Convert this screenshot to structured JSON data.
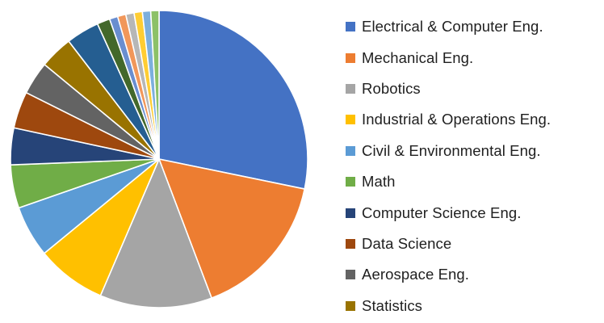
{
  "chart_data": {
    "type": "pie",
    "title": "",
    "legend_position": "right",
    "start_angle_deg": 0,
    "direction": "clockwise",
    "slices": [
      {
        "label": "Electrical & Computer Eng.",
        "value": 28.2,
        "color": "#4472C4"
      },
      {
        "label": "Mechanical Eng.",
        "value": 16.0,
        "color": "#ED7D31"
      },
      {
        "label": "Robotics",
        "value": 12.2,
        "color": "#A5A5A5"
      },
      {
        "label": "Industrial & Operations Eng.",
        "value": 7.6,
        "color": "#FFC000"
      },
      {
        "label": "Civil & Environmental Eng.",
        "value": 5.6,
        "color": "#5B9BD5"
      },
      {
        "label": "Math",
        "value": 4.7,
        "color": "#70AD47"
      },
      {
        "label": "Computer Science Eng.",
        "value": 4.0,
        "color": "#264478"
      },
      {
        "label": "Data Science",
        "value": 4.0,
        "color": "#9E480E"
      },
      {
        "label": "Aerospace Eng.",
        "value": 3.6,
        "color": "#636363"
      },
      {
        "label": "Statistics",
        "value": 3.6,
        "color": "#997300"
      },
      {
        "value": 3.6,
        "color": "#255E91"
      },
      {
        "value": 1.4,
        "color": "#43682B"
      },
      {
        "value": 0.9,
        "color": "#698ED0"
      },
      {
        "value": 0.9,
        "color": "#F1975A"
      },
      {
        "value": 0.9,
        "color": "#B7B7B7"
      },
      {
        "value": 0.9,
        "color": "#FFCD33"
      },
      {
        "value": 0.9,
        "color": "#7CAFDD"
      },
      {
        "value": 0.9,
        "color": "#8CC168"
      }
    ]
  }
}
